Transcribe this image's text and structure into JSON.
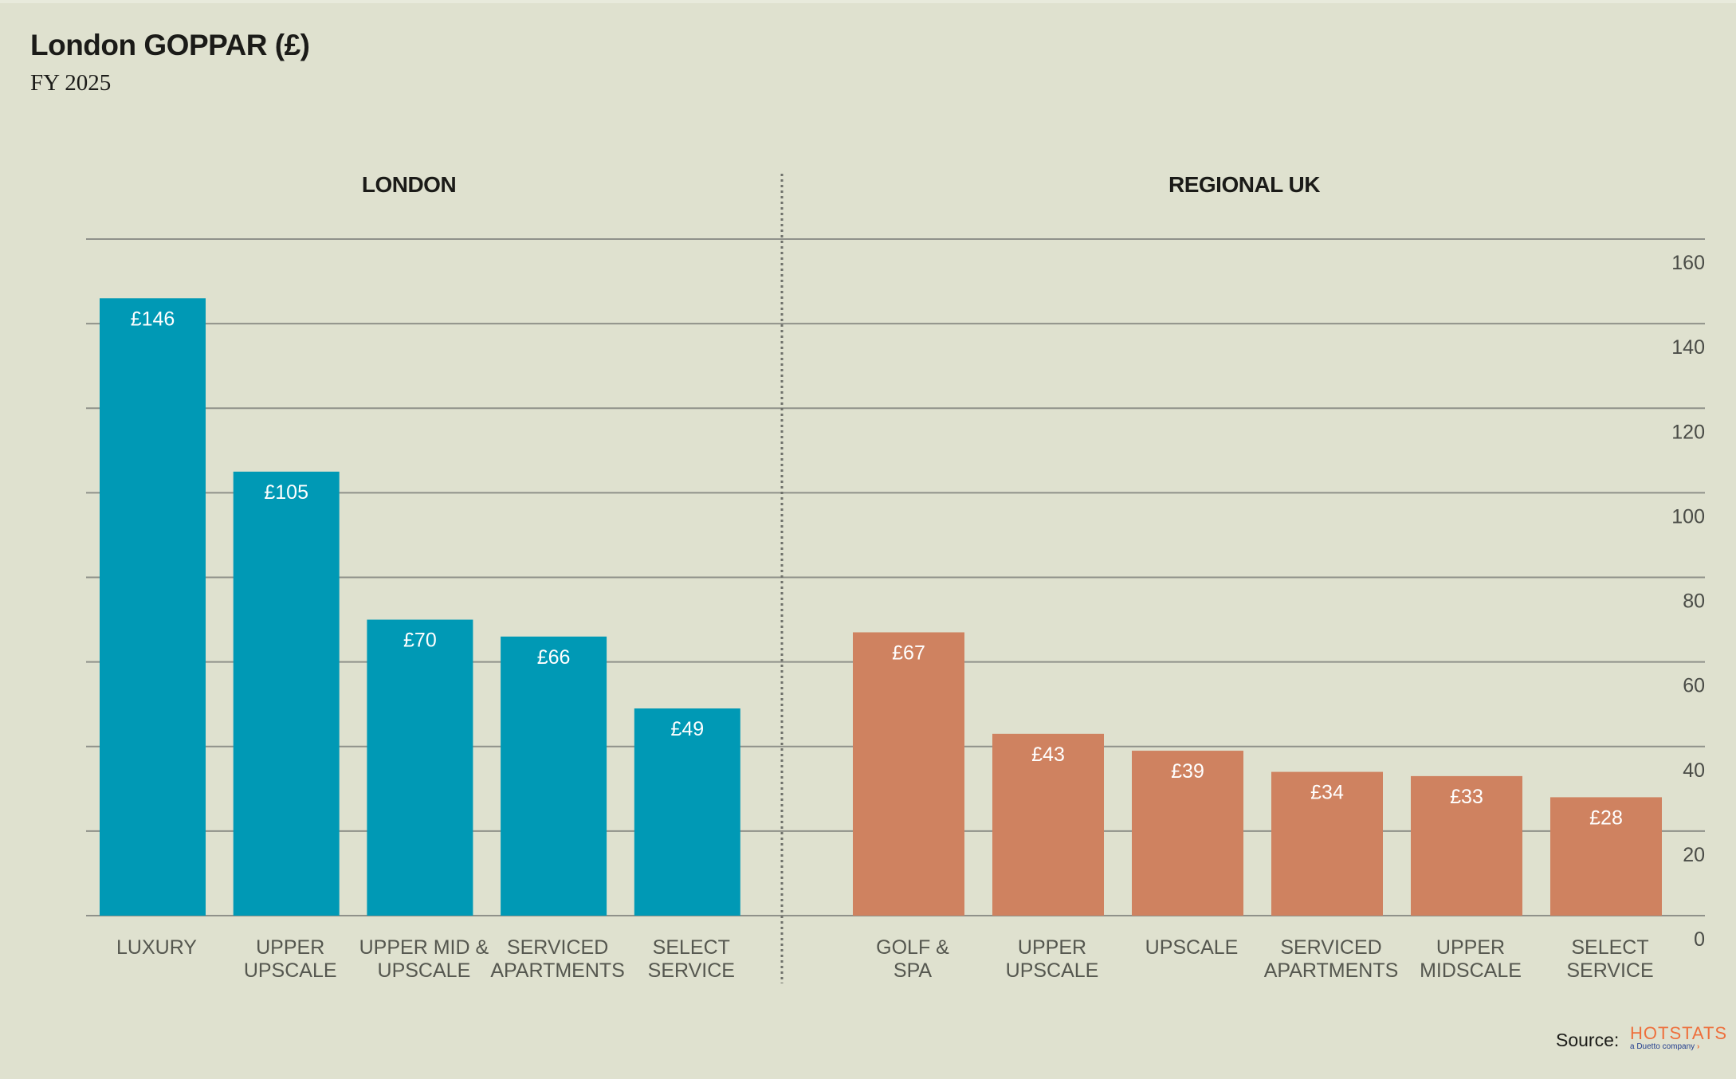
{
  "title": "London GOPPAR (£)",
  "subtitle": "FY 2025",
  "source_label": "Source:",
  "logo": {
    "main": "HOTSTATS",
    "sub": "a Duetto company",
    "arrow": "›"
  },
  "colors": {
    "background": "#dfe1cf",
    "london": "#0099b5",
    "regional": "#cf8260",
    "grid": "#8f918a"
  },
  "chart_data": {
    "type": "bar",
    "ylim": [
      0,
      160
    ],
    "yticks": [
      0,
      20,
      40,
      60,
      80,
      100,
      120,
      140,
      160
    ],
    "grid": true,
    "y_axis_position": "right",
    "groups": [
      {
        "name": "LONDON",
        "color": "#0099b5",
        "categories": [
          [
            "LUXURY"
          ],
          [
            "UPPER",
            "UPSCALE"
          ],
          [
            "UPPER MID &",
            "UPSCALE"
          ],
          [
            "SERVICED",
            "APARTMENTS"
          ],
          [
            "SELECT",
            "SERVICE"
          ]
        ],
        "values": [
          146,
          105,
          70,
          66,
          49
        ],
        "labels": [
          "£146",
          "£105",
          "£70",
          "£66",
          "£49"
        ]
      },
      {
        "name": "REGIONAL UK",
        "color": "#cf8260",
        "categories": [
          [
            "GOLF &",
            "SPA"
          ],
          [
            "UPPER",
            "UPSCALE"
          ],
          [
            "UPSCALE"
          ],
          [
            "SERVICED",
            "APARTMENTS"
          ],
          [
            "UPPER",
            "MIDSCALE"
          ],
          [
            "SELECT",
            "SERVICE"
          ]
        ],
        "values": [
          67,
          43,
          39,
          34,
          33,
          28
        ],
        "labels": [
          "£67",
          "£43",
          "£39",
          "£34",
          "£33",
          "£28"
        ]
      }
    ]
  }
}
